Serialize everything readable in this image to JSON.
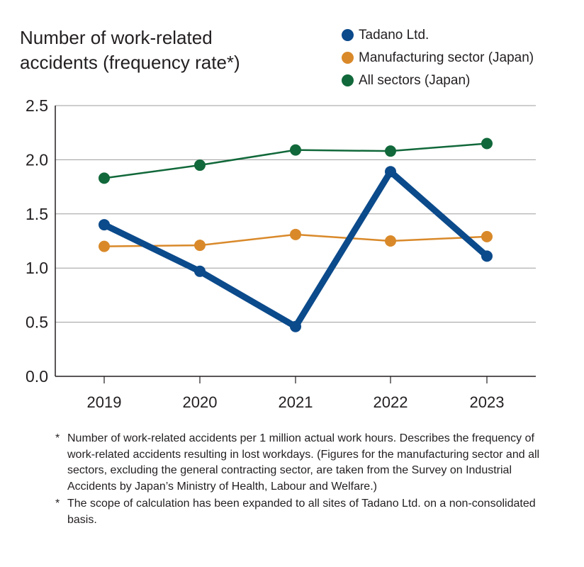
{
  "title_lines": [
    "Number of work-related",
    "accidents (frequency rate*)"
  ],
  "legend": [
    {
      "label": "Tadano Ltd.",
      "color": "#0b4a8b"
    },
    {
      "label": "Manufacturing sector (Japan)",
      "color": "#d9892a"
    },
    {
      "label": "All sectors (Japan)",
      "color": "#11683a"
    }
  ],
  "chart_data": {
    "type": "line",
    "categories": [
      "2019",
      "2020",
      "2021",
      "2022",
      "2023"
    ],
    "series": [
      {
        "name": "Tadano Ltd.",
        "color": "#0b4a8b",
        "values": [
          1.4,
          0.97,
          0.46,
          1.89,
          1.11
        ]
      },
      {
        "name": "Manufacturing sector (Japan)",
        "color": "#d9892a",
        "values": [
          1.2,
          1.21,
          1.31,
          1.25,
          1.29
        ]
      },
      {
        "name": "All sectors (Japan)",
        "color": "#11683a",
        "values": [
          1.83,
          1.95,
          2.09,
          2.08,
          2.15
        ]
      }
    ],
    "ylim": [
      0,
      2.5
    ],
    "yticks": [
      "0.0",
      "0.5",
      "1.0",
      "1.5",
      "2.0",
      "2.5"
    ],
    "grid": true,
    "legend_position": "top-right"
  },
  "footnotes": [
    {
      "mark": "*",
      "text": "Number of work-related accidents per 1 million actual work hours. Describes the frequency of work-related accidents resulting in lost workdays. (Figures for the manufacturing sector and all sectors, excluding the general contracting sector, are taken from the Survey on Industrial Accidents by Japan’s Ministry of Health, Labour and Welfare.)"
    },
    {
      "mark": "*",
      "text": "The scope of calculation has been expanded to all sites of Tadano Ltd. on a non-consolidated basis."
    }
  ]
}
